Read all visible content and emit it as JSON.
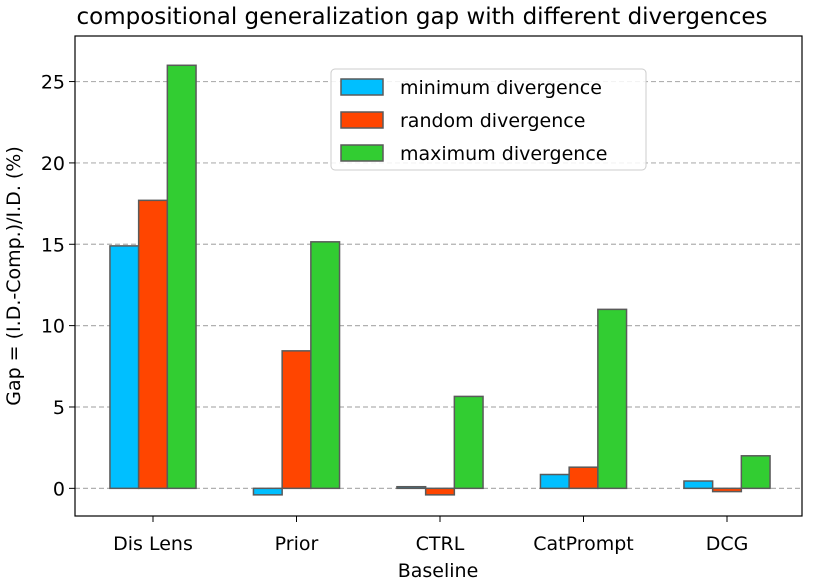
{
  "chart_data": {
    "type": "bar",
    "title": "compositional generalization gap with different divergences",
    "xlabel": "Baseline",
    "ylabel": "Gap = (I.D.-Comp.)/I.D. (%)",
    "ylim": [
      -1.7,
      27.8
    ],
    "yticks": [
      0,
      5,
      10,
      15,
      20,
      25
    ],
    "grid": "horizontal-dashed",
    "legend_position": "top-right",
    "categories": [
      "Dis Lens",
      "Prior",
      "CTRL",
      "CatPrompt",
      "DCG"
    ],
    "series": [
      {
        "name": "minimum divergence",
        "color": "#00bfff",
        "values": [
          14.9,
          -0.4,
          0.1,
          0.85,
          0.45
        ]
      },
      {
        "name": "random divergence",
        "color": "#ff4500",
        "values": [
          17.7,
          8.45,
          -0.4,
          1.3,
          -0.2
        ]
      },
      {
        "name": "maximum divergence",
        "color": "#32cd32",
        "values": [
          26.0,
          15.15,
          5.65,
          11.0,
          2.0
        ]
      }
    ]
  }
}
